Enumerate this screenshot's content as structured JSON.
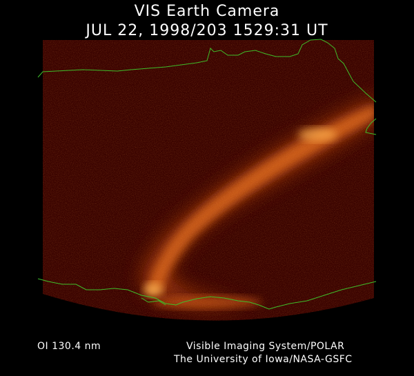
{
  "header": {
    "title": "VIS Earth Camera",
    "timestamp": "JUL 22, 1998/203 1529:31 UT"
  },
  "footer": {
    "filter": "OI  130.4 nm",
    "credit_line1": "Visible Imaging System/POLAR",
    "credit_line2": "The University of Iowa/NASA-GSFC"
  },
  "image": {
    "description_colors": {
      "background": "#3a0300",
      "aurora_glow": "#ff9a30",
      "coastline": "#3fbf2a"
    }
  }
}
